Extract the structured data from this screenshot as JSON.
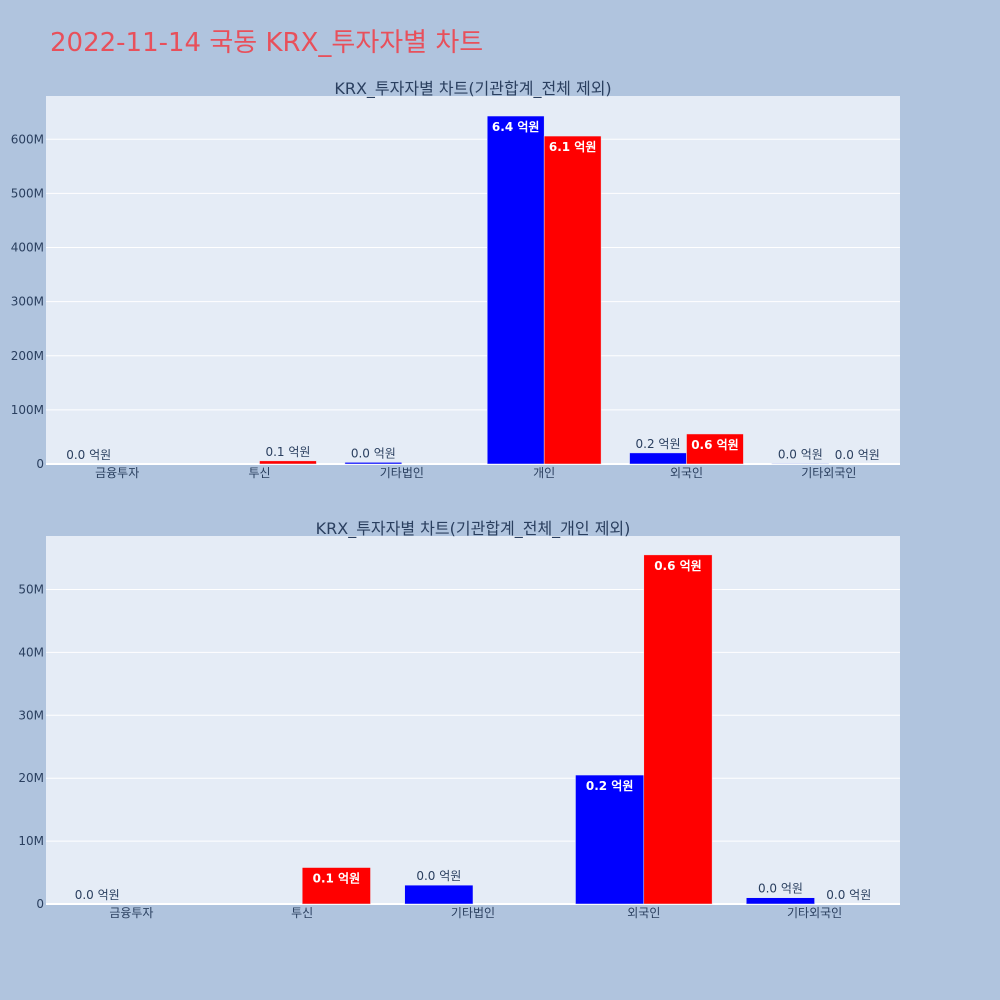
{
  "title": "2022-11-14 국동 KRX_투자자별 차트",
  "colors": {
    "buy": "#0000ff",
    "sell": "#ff0000",
    "background": "#b0c4de",
    "plot_bg": "#e5ecf6",
    "title": "#e8505b"
  },
  "chart_data": [
    {
      "type": "bar",
      "title": "KRX_투자자별 차트(기관합계_전체 제외)",
      "categories": [
        "금융투자",
        "투신",
        "기타법인",
        "개인",
        "외국인",
        "기타외국인"
      ],
      "series": [
        {
          "color": "#0000ff",
          "values": [
            0,
            0,
            3000000,
            643000000,
            20500000,
            1000000
          ],
          "labels": [
            "0.0 억원",
            "",
            "0.0 억원",
            "6.4 억원",
            "0.2 억원",
            "0.0 억원"
          ]
        },
        {
          "color": "#ff0000",
          "values": [
            0,
            5800000,
            0,
            606000000,
            55500000,
            0
          ],
          "labels": [
            "",
            "0.1 억원",
            "",
            "6.1 억원",
            "0.6 억원",
            "0.0 억원"
          ]
        }
      ],
      "ylim": [
        0,
        680000000
      ],
      "yticks": [
        0,
        100000000,
        200000000,
        300000000,
        400000000,
        500000000,
        600000000
      ],
      "ytick_labels": [
        "0",
        "100M",
        "200M",
        "300M",
        "400M",
        "500M",
        "600M"
      ]
    },
    {
      "type": "bar",
      "title": "KRX_투자자별 차트(기관합계_전체_개인 제외)",
      "categories": [
        "금융투자",
        "투신",
        "기타법인",
        "외국인",
        "기타외국인"
      ],
      "series": [
        {
          "color": "#0000ff",
          "values": [
            0,
            0,
            3000000,
            20500000,
            1000000
          ],
          "labels": [
            "0.0 억원",
            "",
            "0.0 억원",
            "0.2 억원",
            "0.0 억원"
          ]
        },
        {
          "color": "#ff0000",
          "values": [
            0,
            5800000,
            0,
            55500000,
            0
          ],
          "labels": [
            "",
            "0.1 억원",
            "",
            "0.6 억원",
            "0.0 억원"
          ]
        }
      ],
      "ylim": [
        0,
        58500000
      ],
      "yticks": [
        0,
        10000000,
        20000000,
        30000000,
        40000000,
        50000000
      ],
      "ytick_labels": [
        "0",
        "10M",
        "20M",
        "30M",
        "40M",
        "50M"
      ]
    }
  ]
}
